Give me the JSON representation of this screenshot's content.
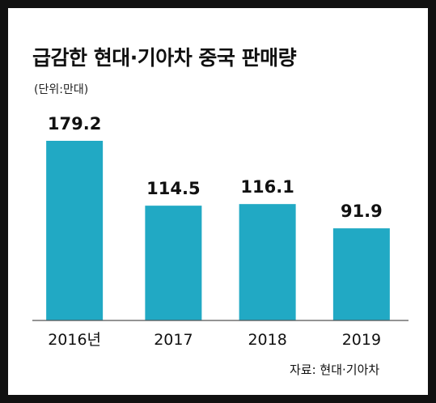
{
  "chart_data": {
    "type": "bar",
    "title": "급감한 현대·기아차 중국 판매량",
    "unit_label": "(단위:만대)",
    "categories": [
      "2016년",
      "2017",
      "2018",
      "2019"
    ],
    "values": [
      179.2,
      114.5,
      116.1,
      91.9
    ],
    "data_labels": [
      "179.2",
      "114.5",
      "116.1",
      "91.9"
    ],
    "bar_color": "#21a9c4",
    "ylim": [
      0,
      185
    ],
    "grid": false,
    "source": "자료: 현대·기아차"
  }
}
